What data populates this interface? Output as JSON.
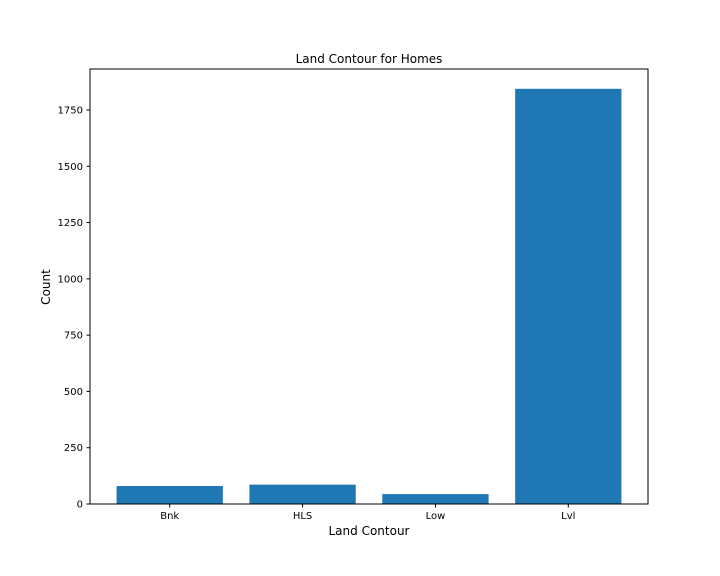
{
  "chart_data": {
    "type": "bar",
    "title": "Land Contour for Homes",
    "xlabel": "Land Contour",
    "ylabel": "Count",
    "categories": [
      "Bnk",
      "HLS",
      "Low",
      "Lvl"
    ],
    "values": [
      80,
      86,
      44,
      1844
    ],
    "ylim": [
      0,
      1932
    ],
    "yticks": [
      0,
      250,
      500,
      750,
      1000,
      1250,
      1500,
      1750
    ],
    "ytick_labels": [
      "0",
      "250",
      "500",
      "750",
      "1000",
      "1250",
      "1500",
      "1750"
    ],
    "grid": false,
    "bar_color": "#1f77b4"
  }
}
